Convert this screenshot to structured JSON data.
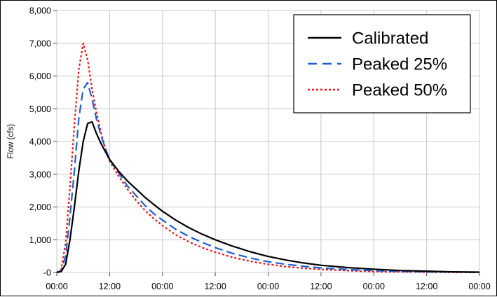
{
  "chart_data": {
    "type": "line",
    "title": "",
    "xlabel": "",
    "ylabel": "Flow (cfs)",
    "x_tick_labels": [
      "00:00",
      "12:00",
      "00:00",
      "12:00",
      "00:00",
      "12:00",
      "00:00",
      "12:00",
      "00:00"
    ],
    "y_tick_labels": [
      "-0",
      "1,000",
      "2,000",
      "3,000",
      "4,000",
      "5,000",
      "6,000",
      "7,000",
      "8,000"
    ],
    "xlim_hours": [
      0,
      96
    ],
    "ylim": [
      0,
      8000
    ],
    "grid": true,
    "legend_position": "top-right",
    "x_hours": [
      0,
      1,
      2,
      3,
      4,
      5,
      6,
      7,
      8,
      9,
      10,
      11,
      12,
      14,
      16,
      18,
      20,
      22,
      24,
      27,
      30,
      33,
      36,
      40,
      44,
      48,
      52,
      56,
      60,
      66,
      72,
      78,
      84,
      90,
      96
    ],
    "series": [
      {
        "name": "Calibrated",
        "color": "#000000",
        "dash": "solid",
        "values": [
          0,
          30,
          250,
          1000,
          2000,
          3100,
          4000,
          4550,
          4600,
          4250,
          3950,
          3700,
          3450,
          3100,
          2800,
          2550,
          2300,
          2080,
          1870,
          1600,
          1370,
          1170,
          1000,
          800,
          630,
          490,
          380,
          290,
          220,
          150,
          100,
          60,
          40,
          20,
          10
        ]
      },
      {
        "name": "Peaked 25%",
        "color": "#1f5fd4",
        "dash": "dashed",
        "values": [
          0,
          50,
          500,
          1700,
          3100,
          4700,
          5600,
          5800,
          5300,
          4700,
          4200,
          3800,
          3450,
          3050,
          2650,
          2350,
          2050,
          1800,
          1600,
          1320,
          1100,
          920,
          760,
          580,
          440,
          330,
          250,
          190,
          140,
          90,
          55,
          35,
          20,
          10,
          5
        ]
      },
      {
        "name": "Peaked 50%",
        "color": "#ee1111",
        "dash": "dotted",
        "values": [
          0,
          90,
          900,
          2600,
          4500,
          6200,
          7000,
          6500,
          5600,
          4900,
          4300,
          3800,
          3400,
          2950,
          2550,
          2200,
          1900,
          1650,
          1430,
          1150,
          940,
          760,
          620,
          460,
          340,
          250,
          180,
          130,
          95,
          55,
          30,
          20,
          10,
          5,
          2
        ]
      }
    ]
  }
}
